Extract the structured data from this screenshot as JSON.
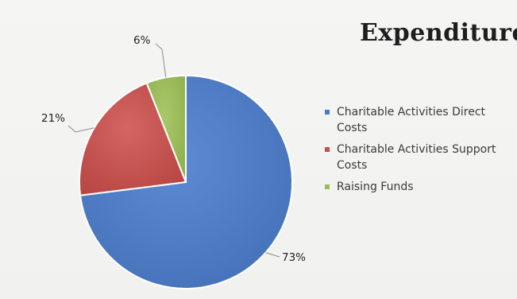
{
  "chart_data": {
    "type": "pie",
    "title": "Expenditure",
    "categories": [
      "Charitable Activities Direct Costs",
      "Charitable Activities Support Costs",
      "Raising Funds"
    ],
    "values": [
      73,
      21,
      6
    ],
    "data_labels": [
      "73%",
      "21%",
      "6%"
    ],
    "colors": [
      "#4a7ac4",
      "#c4504d",
      "#9bbb59"
    ],
    "legend_position": "right"
  }
}
